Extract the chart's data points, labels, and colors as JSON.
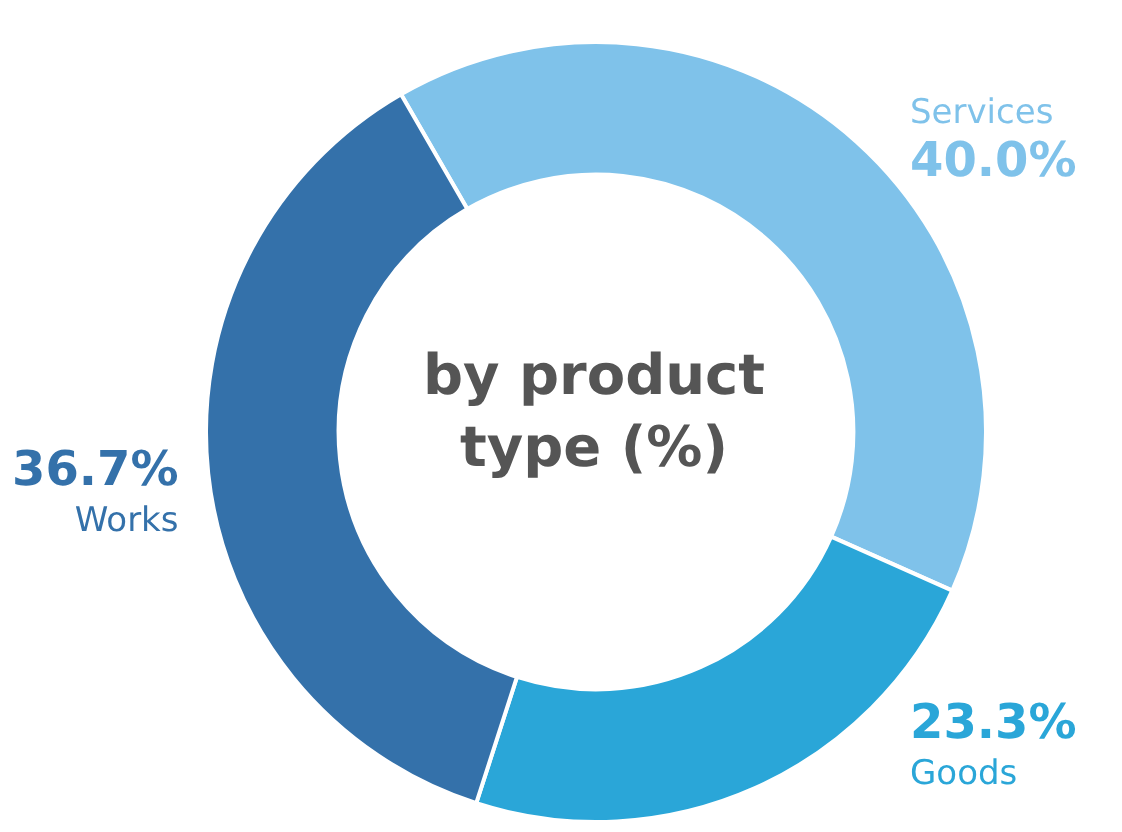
{
  "chart_data": {
    "type": "donut",
    "title": "by product type (%)",
    "categories": [
      "Services",
      "Goods",
      "Works"
    ],
    "values": [
      40.0,
      23.3,
      36.7
    ],
    "colors": [
      "#7fc2ea",
      "#2aa6d8",
      "#3471aa"
    ],
    "value_labels": [
      "40.0%",
      "23.3%",
      "36.7%"
    ],
    "legend": false
  }
}
